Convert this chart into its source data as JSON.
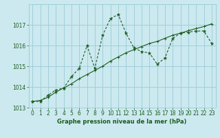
{
  "xlabel": "Graphe pression niveau de la mer (hPa)",
  "bg_color": "#cce9f0",
  "grid_color": "#9fcfda",
  "line_color": "#1a5c1a",
  "line1_x": [
    0,
    1,
    2,
    3,
    4,
    5,
    6,
    7,
    8,
    9,
    10,
    11,
    12,
    13,
    14,
    15,
    16,
    17,
    18,
    19,
    20,
    21,
    22,
    23
  ],
  "line1_y": [
    1013.3,
    1013.3,
    1013.6,
    1013.85,
    1013.95,
    1014.5,
    1014.9,
    1016.0,
    1014.9,
    1016.5,
    1017.3,
    1017.5,
    1016.6,
    1015.9,
    1015.7,
    1015.65,
    1015.1,
    1015.4,
    1016.35,
    1016.6,
    1016.65,
    1016.7,
    1016.7,
    1016.1
  ],
  "line2_x": [
    0,
    1,
    2,
    3,
    4,
    5,
    6,
    7,
    8,
    9,
    10,
    11,
    12,
    13,
    14,
    15,
    16,
    17,
    18,
    19,
    20,
    21,
    22,
    23
  ],
  "line2_y": [
    1013.3,
    1013.35,
    1013.5,
    1013.75,
    1013.95,
    1014.15,
    1014.4,
    1014.6,
    1014.8,
    1015.0,
    1015.25,
    1015.45,
    1015.65,
    1015.8,
    1015.95,
    1016.1,
    1016.2,
    1016.35,
    1016.5,
    1016.6,
    1016.72,
    1016.82,
    1016.92,
    1017.05
  ],
  "ylim": [
    1013.0,
    1018.0
  ],
  "yticks": [
    1013,
    1014,
    1015,
    1016,
    1017
  ],
  "xticks": [
    0,
    1,
    2,
    3,
    4,
    5,
    6,
    7,
    8,
    9,
    10,
    11,
    12,
    13,
    14,
    15,
    16,
    17,
    18,
    19,
    20,
    21,
    22,
    23
  ],
  "xlabel_fontsize": 6.0,
  "tick_fontsize": 5.5
}
